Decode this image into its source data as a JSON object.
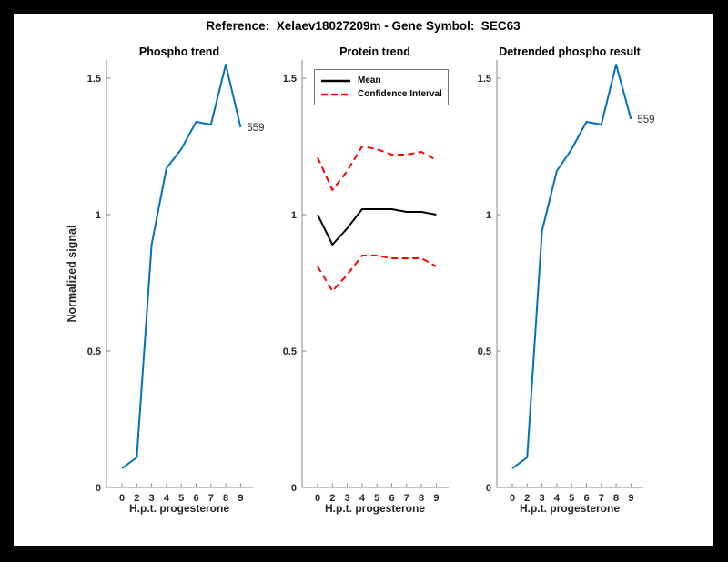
{
  "figure": {
    "title": "Reference:  Xelaev18027209m - Gene Symbol:  SEC63",
    "border_color": "#000000",
    "background": "#ffffff"
  },
  "colors": {
    "line_blue": "#0072BD",
    "line_red": "#ff0000",
    "line_black": "#000000",
    "axis": "#8a8a8a",
    "tick_text": "#262626"
  },
  "chart_data": [
    {
      "type": "line",
      "title": "Phospho trend",
      "xlabel": "H.p.t. progesterone",
      "ylabel": "Normalized signal",
      "x_values": [
        0,
        2,
        3,
        4,
        5,
        6,
        7,
        8,
        9
      ],
      "x_tick_labels": [
        "0",
        "2",
        "3",
        "4",
        "5",
        "6",
        "7",
        "8",
        "9"
      ],
      "y_tick_values": [
        0,
        0.5,
        1,
        1.5
      ],
      "y_tick_labels": [
        "0",
        "0.5",
        "1",
        "1.5"
      ],
      "ylim": [
        0,
        1.57
      ],
      "grid": false,
      "series": [
        {
          "name": "phospho-signal",
          "color": "#0072BD",
          "style": "solid",
          "values": [
            0.07,
            0.11,
            0.89,
            1.17,
            1.24,
            1.34,
            1.33,
            1.55,
            1.32
          ],
          "end_label": "559"
        }
      ]
    },
    {
      "type": "line",
      "title": "Protein trend",
      "xlabel": "H.p.t. progesterone",
      "x_values": [
        0,
        2,
        3,
        4,
        5,
        6,
        7,
        8,
        9
      ],
      "x_tick_labels": [
        "0",
        "2",
        "3",
        "4",
        "5",
        "6",
        "7",
        "8",
        "9"
      ],
      "y_tick_values": [
        0,
        0.5,
        1,
        1.5
      ],
      "y_tick_labels": [
        "0",
        "0.5",
        "1",
        "1.5"
      ],
      "ylim": [
        0,
        1.57
      ],
      "grid": false,
      "legend": {
        "position": "top-left",
        "items": [
          {
            "label": "Mean",
            "color": "#000000",
            "style": "solid"
          },
          {
            "label": "Confidence Interval",
            "color": "#ff0000",
            "style": "dashed"
          }
        ]
      },
      "series": [
        {
          "name": "mean",
          "color": "#000000",
          "style": "solid",
          "values": [
            1.0,
            0.89,
            0.95,
            1.02,
            1.02,
            1.02,
            1.01,
            1.01,
            1.0
          ]
        },
        {
          "name": "ci-upper",
          "color": "#ff0000",
          "style": "dashed",
          "values": [
            1.21,
            1.09,
            1.16,
            1.25,
            1.24,
            1.22,
            1.22,
            1.23,
            1.2
          ]
        },
        {
          "name": "ci-lower",
          "color": "#ff0000",
          "style": "dashed",
          "values": [
            0.81,
            0.72,
            0.78,
            0.85,
            0.85,
            0.84,
            0.84,
            0.84,
            0.81
          ]
        }
      ]
    },
    {
      "type": "line",
      "title": "Detrended phospho result",
      "xlabel": "H.p.t. progesterone",
      "x_values": [
        0,
        2,
        3,
        4,
        5,
        6,
        7,
        8,
        9
      ],
      "x_tick_labels": [
        "0",
        "2",
        "3",
        "4",
        "5",
        "6",
        "7",
        "8",
        "9"
      ],
      "y_tick_values": [
        0,
        0.5,
        1,
        1.5
      ],
      "y_tick_labels": [
        "0",
        "0.5",
        "1",
        "1.5"
      ],
      "ylim": [
        0,
        1.57
      ],
      "grid": false,
      "series": [
        {
          "name": "detrended-phospho-signal",
          "color": "#0072BD",
          "style": "solid",
          "values": [
            0.07,
            0.11,
            0.94,
            1.16,
            1.24,
            1.34,
            1.33,
            1.55,
            1.35
          ],
          "end_label": "559"
        }
      ]
    }
  ]
}
